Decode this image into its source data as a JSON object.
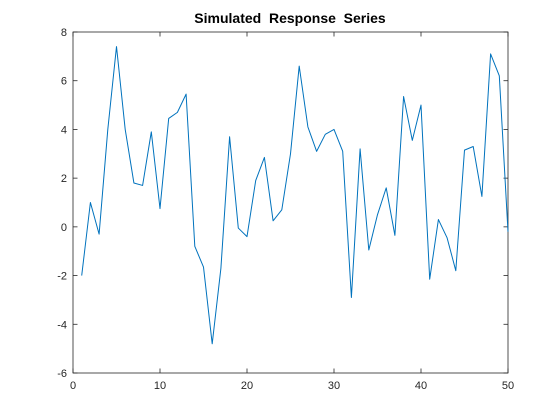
{
  "chart_data": {
    "type": "line",
    "title": "Simulated  Response  Series",
    "xlabel": "",
    "ylabel": "",
    "xlim": [
      0,
      50
    ],
    "ylim": [
      -6,
      8
    ],
    "xticks": [
      0,
      10,
      20,
      30,
      40,
      50
    ],
    "yticks": [
      -6,
      -4,
      -2,
      0,
      2,
      4,
      6,
      8
    ],
    "grid": false,
    "colors": {
      "line": "#0072BD",
      "axes": "#262626"
    },
    "x": [
      1,
      2,
      3,
      4,
      5,
      6,
      7,
      8,
      9,
      10,
      11,
      12,
      13,
      14,
      15,
      16,
      17,
      18,
      19,
      20,
      21,
      22,
      23,
      24,
      25,
      26,
      27,
      28,
      29,
      30,
      31,
      32,
      33,
      34,
      35,
      36,
      37,
      38,
      39,
      40,
      41,
      42,
      43,
      44,
      45,
      46,
      47,
      48,
      49,
      50
    ],
    "y": [
      -2.0,
      1.0,
      -0.3,
      4.0,
      7.4,
      4.0,
      1.8,
      1.7,
      3.9,
      0.75,
      4.45,
      4.7,
      5.45,
      -0.8,
      -1.65,
      -4.8,
      -1.7,
      3.7,
      -0.05,
      -0.4,
      1.9,
      2.85,
      0.25,
      0.7,
      3.0,
      6.6,
      4.1,
      3.1,
      3.8,
      4.0,
      3.1,
      -2.9,
      3.2,
      -0.95,
      0.5,
      1.6,
      -0.35,
      5.35,
      3.55,
      5.0,
      -2.15,
      0.3,
      -0.45,
      -1.8,
      3.15,
      3.3,
      1.25,
      7.1,
      6.2,
      -0.2
    ]
  }
}
